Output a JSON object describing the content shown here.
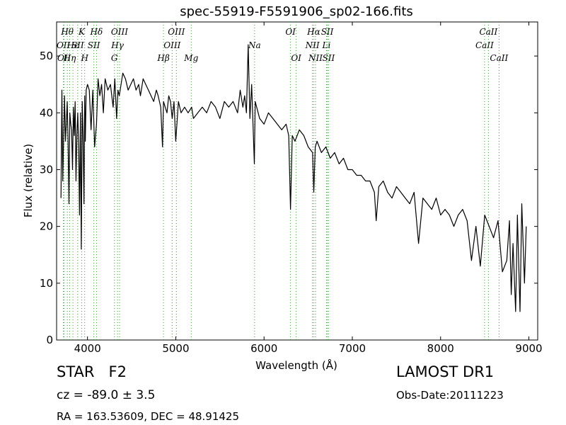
{
  "chart_data": {
    "type": "line",
    "title": "spec-55919-F5591906_sp02-166.fits",
    "xlabel": "Wavelength (Å)",
    "ylabel": "Flux (relative)",
    "xlim": [
      3650,
      9100
    ],
    "ylim": [
      0,
      56
    ],
    "xticks": [
      4000,
      5000,
      6000,
      7000,
      8000,
      9000
    ],
    "yticks": [
      0,
      10,
      20,
      30,
      40,
      50
    ],
    "line_color": "#000000",
    "marker_color": "#2ca02c",
    "grid": false,
    "series": [
      {
        "x": [
          3700,
          3710,
          3720,
          3730,
          3740,
          3750,
          3760,
          3770,
          3780,
          3790,
          3800,
          3810,
          3820,
          3830,
          3840,
          3850,
          3860,
          3870,
          3880,
          3890,
          3900,
          3910,
          3920,
          3930,
          3935,
          3940,
          3950,
          3960,
          3968,
          3975,
          3985,
          4000,
          4020,
          4040,
          4060,
          4080,
          4102,
          4120,
          4140,
          4160,
          4180,
          4200,
          4230,
          4260,
          4290,
          4310,
          4330,
          4345,
          4360,
          4380,
          4400,
          4430,
          4460,
          4490,
          4520,
          4550,
          4580,
          4600,
          4630,
          4660,
          4690,
          4720,
          4750,
          4780,
          4800,
          4830,
          4850,
          4861,
          4880,
          4900,
          4920,
          4940,
          4960,
          4980,
          5000,
          5030,
          5060,
          5100,
          5140,
          5180,
          5200,
          5250,
          5300,
          5350,
          5400,
          5450,
          5500,
          5550,
          5600,
          5650,
          5700,
          5730,
          5760,
          5780,
          5800,
          5820,
          5840,
          5860,
          5875,
          5890,
          5900,
          5950,
          6000,
          6050,
          6100,
          6150,
          6200,
          6250,
          6280,
          6300,
          6320,
          6350,
          6400,
          6450,
          6500,
          6550,
          6563,
          6580,
          6600,
          6650,
          6700,
          6750,
          6800,
          6850,
          6900,
          6950,
          7000,
          7050,
          7100,
          7150,
          7200,
          7250,
          7270,
          7300,
          7350,
          7400,
          7450,
          7500,
          7550,
          7600,
          7650,
          7700,
          7750,
          7800,
          7850,
          7900,
          7950,
          8000,
          8050,
          8100,
          8150,
          8200,
          8250,
          8300,
          8350,
          8400,
          8450,
          8500,
          8550,
          8600,
          8650,
          8700,
          8750,
          8780,
          8800,
          8820,
          8850,
          8870,
          8900,
          8920,
          8950,
          8970
        ],
        "y": [
          25,
          44,
          28,
          36,
          43,
          35,
          38,
          42,
          35,
          24,
          40,
          38,
          37,
          30,
          41,
          36,
          42,
          28,
          36,
          40,
          34,
          22,
          40,
          16,
          30,
          42,
          36,
          24,
          43,
          35,
          44,
          45,
          44,
          37,
          44,
          34,
          38,
          46,
          43,
          45,
          40,
          46,
          44,
          45,
          41,
          46,
          39,
          44,
          43,
          45,
          47,
          46,
          44,
          45,
          46,
          44,
          45,
          43,
          46,
          45,
          44,
          43,
          42,
          44,
          43,
          41,
          34,
          42,
          41,
          40,
          43,
          42,
          39,
          42,
          35,
          42,
          40,
          41,
          40,
          41,
          39,
          40,
          41,
          40,
          42,
          41,
          39,
          42,
          41,
          42,
          40,
          44,
          41,
          43,
          40,
          52,
          39,
          45,
          38,
          31,
          42,
          39,
          38,
          40,
          39,
          38,
          37,
          38,
          36,
          23,
          36,
          35,
          37,
          36,
          34,
          33,
          26,
          34,
          35,
          33,
          34,
          32,
          33,
          31,
          32,
          30,
          30,
          29,
          29,
          28,
          28,
          26,
          21,
          27,
          28,
          26,
          25,
          27,
          26,
          25,
          24,
          26,
          17,
          25,
          24,
          23,
          25,
          22,
          23,
          22,
          20,
          22,
          23,
          21,
          14,
          20,
          13,
          22,
          20,
          18,
          21,
          12,
          14,
          21,
          8,
          17,
          5,
          22,
          5,
          24,
          10,
          20
        ]
      }
    ],
    "line_markers": [
      {
        "x": 3727,
        "label": "OII",
        "row": 1
      },
      {
        "x": 3735,
        "label": "OII",
        "row": 2
      },
      {
        "x": 3771,
        "label": "Hθ",
        "row": 0
      },
      {
        "x": 3798,
        "label": "Hη",
        "row": 2
      },
      {
        "x": 3835,
        "label": "Hε",
        "row": 1
      },
      {
        "x": 3889,
        "label": "SII",
        "row": 1
      },
      {
        "x": 3934,
        "label": "K",
        "row": 0
      },
      {
        "x": 3968,
        "label": "H",
        "row": 2
      },
      {
        "x": 4072,
        "label": "SII",
        "row": 1
      },
      {
        "x": 4102,
        "label": "Hδ",
        "row": 0
      },
      {
        "x": 4305,
        "label": "G",
        "row": 2
      },
      {
        "x": 4340,
        "label": "Hγ",
        "row": 1
      },
      {
        "x": 4363,
        "label": "OIII",
        "row": 0
      },
      {
        "x": 4861,
        "label": "Hβ",
        "row": 2
      },
      {
        "x": 4959,
        "label": "OIII",
        "row": 1
      },
      {
        "x": 5007,
        "label": "OIII",
        "row": 0
      },
      {
        "x": 5175,
        "label": "Mg",
        "row": 2
      },
      {
        "x": 5893,
        "label": "Na",
        "row": 1
      },
      {
        "x": 6300,
        "label": "OI",
        "row": 0
      },
      {
        "x": 6364,
        "label": "OI",
        "row": 2
      },
      {
        "x": 6548,
        "label": "NII",
        "row": 1
      },
      {
        "x": 6563,
        "label": "Hα",
        "row": 0
      },
      {
        "x": 6583,
        "label": "NII",
        "row": 2
      },
      {
        "x": 6707,
        "label": "Li",
        "row": 1
      },
      {
        "x": 6716,
        "label": "SII",
        "row": 0
      },
      {
        "x": 6731,
        "label": "SII",
        "row": 2
      },
      {
        "x": 8498,
        "label": "CaII",
        "row": 1
      },
      {
        "x": 8542,
        "label": "CaII",
        "row": 0
      },
      {
        "x": 8662,
        "label": "CaII",
        "row": 2
      }
    ]
  },
  "info": {
    "object_class": "STAR",
    "subclass": "F2",
    "redshift": "cz = -89.0 ± 3.5",
    "coordinates": "RA = 163.53609, DEC = 48.91425",
    "survey": "LAMOST DR1",
    "obs_date": "Obs-Date:20111223"
  }
}
